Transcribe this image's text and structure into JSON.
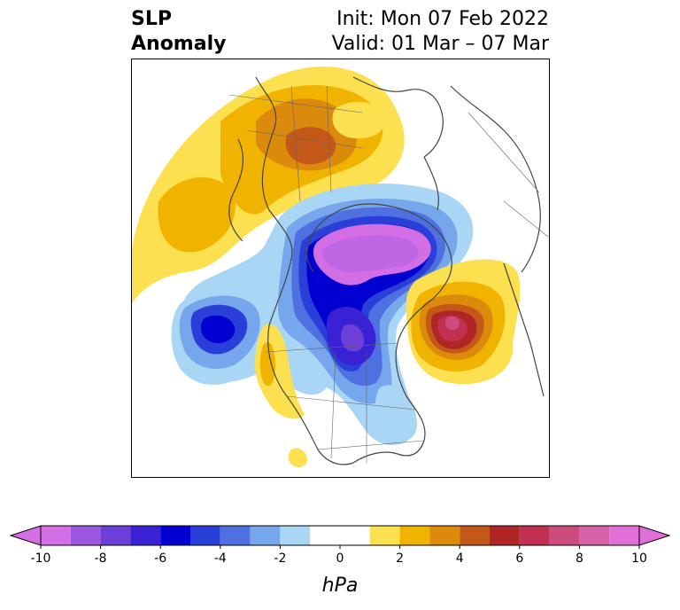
{
  "header": {
    "title_line1": "SLP",
    "title_line2": "Anomaly",
    "init": "Init: Mon 07 Feb 2022",
    "valid": "Valid: 01 Mar – 07 Mar"
  },
  "colorbar": {
    "unit": "hPa",
    "tick_labels": [
      "-10",
      "-8",
      "-6",
      "-4",
      "-2",
      "0",
      "2",
      "4",
      "6",
      "8",
      "10"
    ],
    "levels": [
      -10,
      -9,
      -8,
      -7,
      -6,
      -5,
      -4,
      -3,
      -2,
      -1,
      1,
      2,
      3,
      4,
      5,
      6,
      7,
      8,
      9,
      10
    ],
    "colors": [
      "#d46ee6",
      "#9c58e0",
      "#6c3fd8",
      "#3a22d4",
      "#0000d0",
      "#2a3ed8",
      "#4e70e0",
      "#76a6ec",
      "#a9d6f5",
      "#ffffff",
      "#fde050",
      "#f0b400",
      "#dc8a0c",
      "#c45818",
      "#b02626",
      "#c03050",
      "#cc4a7c",
      "#d862a8",
      "#e070d8"
    ],
    "extend_low_color": "#d46ee6",
    "extend_high_color": "#e070d8"
  }
}
